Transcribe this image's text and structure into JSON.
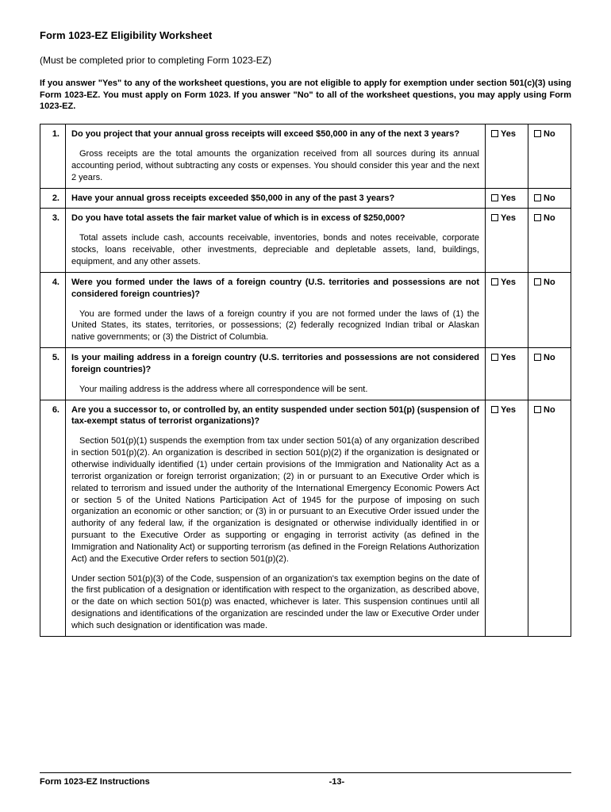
{
  "title": "Form 1023-EZ Eligibility Worksheet",
  "subtitle": "(Must be completed prior to completing Form 1023-EZ)",
  "instructions": "If you answer \"Yes\" to any of the worksheet questions, you are not eligible to apply for exemption under section 501(c)(3) using Form 1023-EZ. You must apply on Form 1023. If you answer \"No\" to all of the worksheet questions, you may apply using Form 1023-EZ.",
  "yes_label": "Yes",
  "no_label": "No",
  "rows": [
    {
      "num": "1.",
      "question": "Do you project that your annual gross receipts will exceed $50,000 in any of the next 3 years?",
      "explain": "Gross receipts are the total amounts the organization received from all sources during its annual accounting period, without subtracting any costs or expenses. You should consider this year and the next 2 years."
    },
    {
      "num": "2.",
      "question": "Have your annual gross receipts exceeded $50,000 in any of the past 3 years?"
    },
    {
      "num": "3.",
      "question": "Do you have total assets the fair market value of which is in excess of $250,000?",
      "explain": "Total assets include cash, accounts receivable, inventories, bonds and notes receivable, corporate stocks, loans receivable, other investments, depreciable and depletable assets, land, buildings, equipment, and any other assets."
    },
    {
      "num": "4.",
      "question": "Were you formed under the laws of a foreign country (U.S. territories and possessions are not considered foreign countries)?",
      "explain": "You are formed under the laws of a foreign country if you are not formed under the laws of (1) the United States, its states, territories, or possessions; (2) federally recognized Indian tribal or Alaskan native governments; or (3) the District of Columbia."
    },
    {
      "num": "5.",
      "question": "Is your mailing address in a foreign country (U.S. territories and possessions are not considered foreign countries)?",
      "explain": "Your mailing address is the address where all correspondence will be sent."
    },
    {
      "num": "6.",
      "question": "Are you a successor to, or controlled by, an entity suspended under section 501(p) (suspension of tax-exempt status of terrorist organizations)?",
      "explain": "Section 501(p)(1) suspends the exemption from tax under section 501(a) of any organization described in section 501(p)(2). An organization is described in section 501(p)(2) if the organization is designated or otherwise individually identified (1) under certain provisions of the Immigration and Nationality Act as a terrorist organization or foreign terrorist organization; (2) in or pursuant to an Executive Order which is related to terrorism and issued under the authority of the International Emergency Economic Powers Act or section 5 of the United Nations Participation Act of 1945 for the purpose of imposing on such organization an economic or other sanction; or (3) in or pursuant to an Executive Order issued under the authority of any federal law, if the organization is designated or otherwise individually identified in or pursuant to the Executive Order as supporting or engaging in terrorist activity (as defined in the Immigration and Nationality Act) or supporting terrorism (as defined in the Foreign Relations Authorization Act) and the Executive Order refers to section 501(p)(2).",
      "explain2": "Under section 501(p)(3) of the Code, suspension of an organization's tax exemption begins on the date of the first publication of a designation or identification with respect to the organization, as described above, or the date on which section 501(p) was enacted, whichever is later. This suspension continues until all designations and identifications of the organization are rescinded under the law or Executive Order under which such designation or identification was made."
    }
  ],
  "footer_left": "Form 1023-EZ Instructions",
  "footer_page": "-13-"
}
